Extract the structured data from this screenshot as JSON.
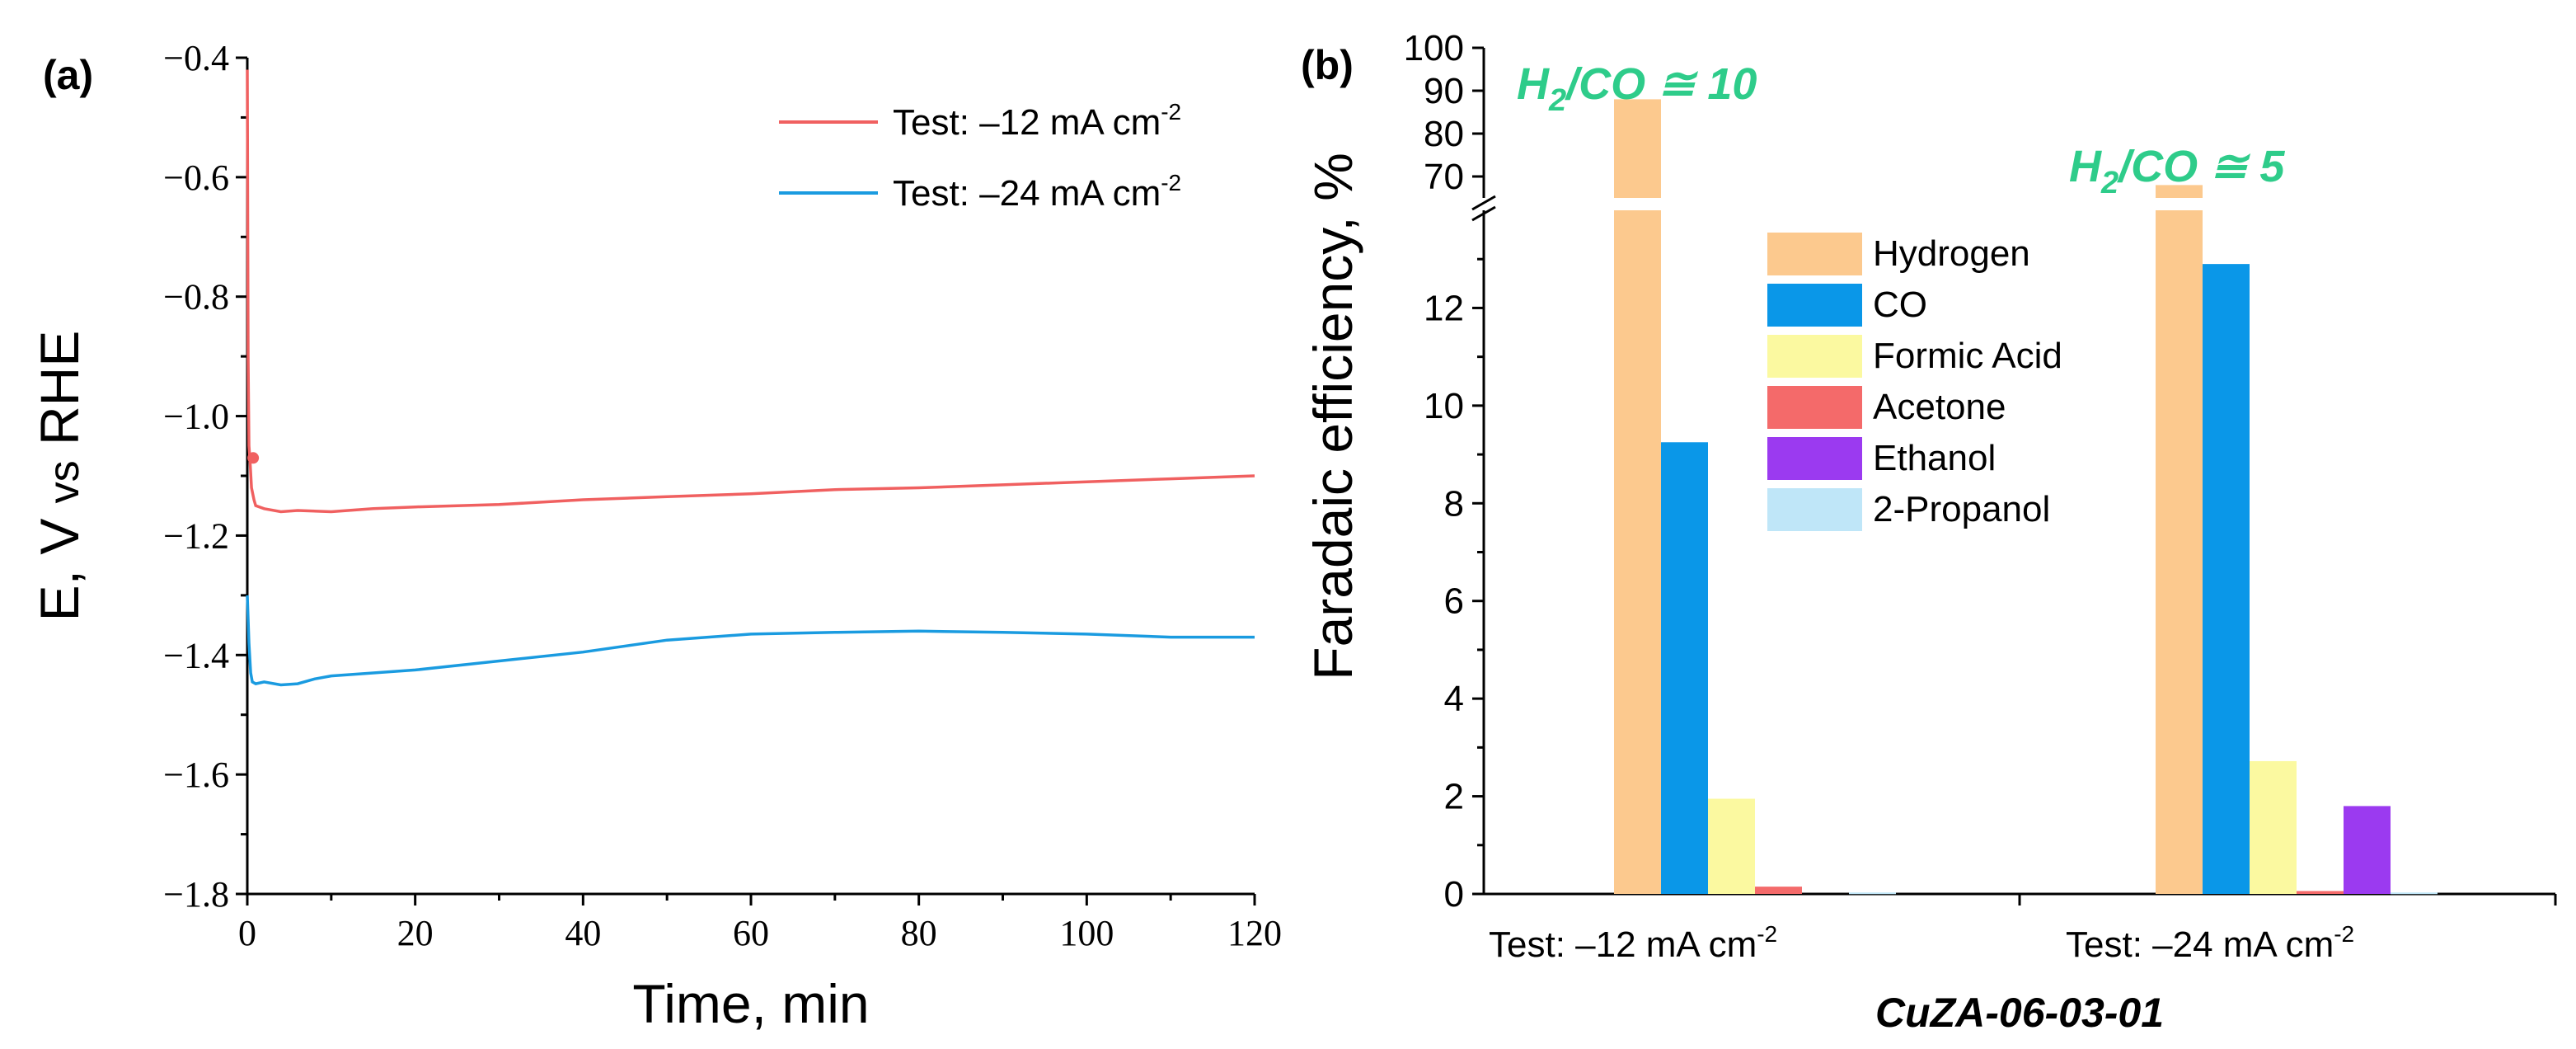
{
  "chart_data": [
    {
      "panel_label": "(a)",
      "type": "line",
      "xlabel": "Time, min",
      "ylabel_parts": [
        "E, V ",
        "vs",
        " RHE"
      ],
      "xlim": [
        0,
        120
      ],
      "ylim": [
        -1.8,
        -0.4
      ],
      "xticks": [
        0,
        20,
        40,
        60,
        80,
        100,
        120
      ],
      "xtick_labels": [
        "0",
        "20",
        "40",
        "60",
        "80",
        "100",
        "120"
      ],
      "yticks": [
        -0.4,
        -0.6,
        -0.8,
        -1.0,
        -1.2,
        -1.4,
        -1.6,
        -1.8
      ],
      "ytick_labels": [
        "−0.4",
        "−0.6",
        "−0.8",
        "−1.0",
        "−1.2",
        "−1.4",
        "−1.6",
        "−1.8"
      ],
      "legend_position": "top-right",
      "series": [
        {
          "name_main": "Test: –12 mA cm",
          "name_sup": "-2",
          "color": "#f06060",
          "x": [
            0,
            0.1,
            0.2,
            0.3,
            0.5,
            0.8,
            1.0,
            2,
            4,
            6,
            10,
            15,
            20,
            30,
            40,
            50,
            60,
            70,
            80,
            90,
            100,
            110,
            120
          ],
          "y": [
            -0.42,
            -0.9,
            -1.05,
            -1.07,
            -1.12,
            -1.14,
            -1.15,
            -1.155,
            -1.16,
            -1.158,
            -1.16,
            -1.155,
            -1.152,
            -1.148,
            -1.14,
            -1.135,
            -1.13,
            -1.123,
            -1.12,
            -1.115,
            -1.11,
            -1.105,
            -1.1
          ]
        },
        {
          "name_main": "Test: –24 mA cm",
          "name_sup": "-2",
          "color": "#1a9be0",
          "x": [
            0,
            0.2,
            0.4,
            0.6,
            1,
            2,
            4,
            6,
            8,
            10,
            15,
            20,
            30,
            40,
            50,
            60,
            70,
            80,
            90,
            100,
            110,
            120
          ],
          "y": [
            -1.3,
            -1.38,
            -1.43,
            -1.445,
            -1.448,
            -1.445,
            -1.45,
            -1.448,
            -1.44,
            -1.435,
            -1.43,
            -1.425,
            -1.41,
            -1.395,
            -1.375,
            -1.365,
            -1.362,
            -1.36,
            -1.362,
            -1.365,
            -1.37,
            -1.37
          ]
        }
      ]
    },
    {
      "panel_label": "(b)",
      "type": "bar",
      "ylabel": "Faradaic efficiency,  %",
      "xlabel": "CuZA-06-03-01",
      "axis_break": true,
      "lower_ylim": [
        0,
        14
      ],
      "upper_ylim": [
        65,
        100
      ],
      "lower_yticks": [
        0,
        2,
        4,
        6,
        8,
        10,
        12
      ],
      "lower_ytick_labels": [
        "0",
        "2",
        "4",
        "6",
        "8",
        "10",
        "12"
      ],
      "upper_yticks": [
        70,
        80,
        90,
        100
      ],
      "upper_ytick_labels": [
        "70",
        "80",
        "90",
        "100"
      ],
      "categories": [
        "Test: –12 mA cm",
        "Test: –24 mA cm"
      ],
      "category_sup": "-2",
      "legend_position": "center",
      "series": [
        {
          "name": "Hydrogen",
          "color": "#fcc98e",
          "values": [
            88,
            68
          ]
        },
        {
          "name": "CO",
          "color": "#0a97e8",
          "values": [
            9.25,
            12.9
          ]
        },
        {
          "name": "Formic Acid",
          "color": "#fbf9a0",
          "values": [
            1.95,
            2.72
          ]
        },
        {
          "name": "Acetone",
          "color": "#f46a6a",
          "values": [
            0.15,
            0.06
          ]
        },
        {
          "name": "Ethanol",
          "color": "#9b3af0",
          "values": [
            0.0,
            1.8
          ]
        },
        {
          "name": "2-Propanol",
          "color": "#bfe6f8",
          "values": [
            0.03,
            0.03
          ]
        }
      ],
      "annotations": [
        {
          "text_pre": "H",
          "text_sub": "2",
          "text_post": "/CO ≅ 10",
          "category": 0
        },
        {
          "text_pre": "H",
          "text_sub": "2",
          "text_post": "/CO ≅ 5",
          "category": 1
        }
      ]
    }
  ]
}
